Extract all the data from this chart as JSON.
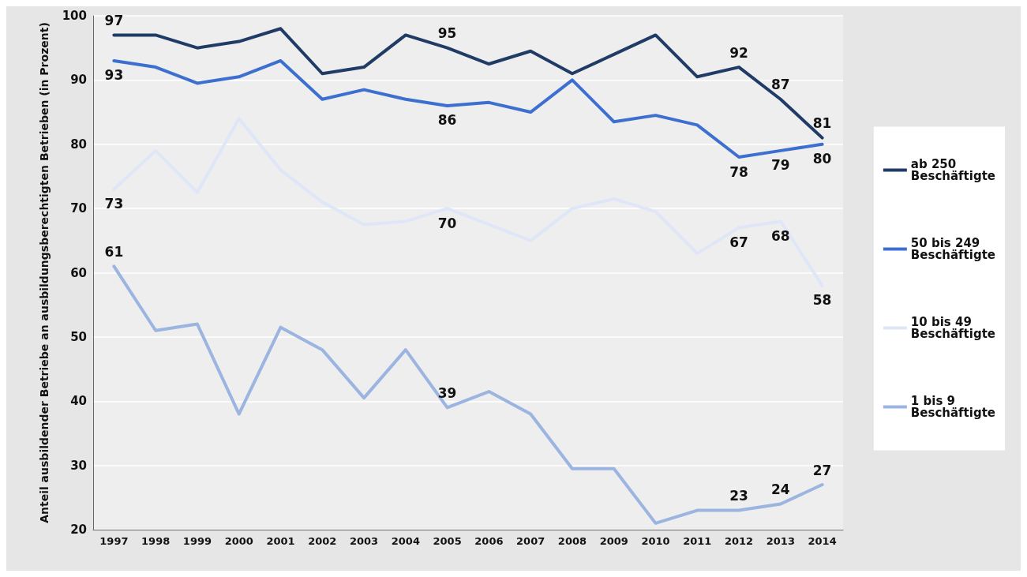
{
  "chart_data": {
    "type": "line",
    "ylabel": "Anteil ausbildender Betriebe an ausbildungsberechtigten Betrieben (in Prozent)",
    "categories": [
      "1997",
      "1998",
      "1999",
      "2000",
      "2001",
      "2002",
      "2003",
      "2004",
      "2005",
      "2006",
      "2007",
      "2008",
      "2009",
      "2010",
      "2011",
      "2012",
      "2013",
      "2014"
    ],
    "series": [
      {
        "name": "ab 250 Beschäftigte",
        "color": "#1f3b66",
        "values": [
          97,
          97,
          95,
          96,
          98,
          91,
          92,
          97,
          95,
          92.5,
          94.5,
          91,
          94,
          97,
          90.5,
          92,
          87,
          81
        ],
        "value_labels": [
          "97",
          null,
          null,
          null,
          null,
          null,
          null,
          null,
          "95",
          null,
          null,
          null,
          null,
          null,
          null,
          "92",
          "87",
          "81"
        ]
      },
      {
        "name": "50 bis 249 Beschäftigte",
        "color": "#3d6fd1",
        "values": [
          93,
          92,
          89.5,
          90.5,
          93,
          87,
          88.5,
          87,
          86,
          86.5,
          85,
          90,
          83.5,
          84.5,
          83,
          78,
          79,
          80
        ],
        "value_labels": [
          "93",
          null,
          null,
          null,
          null,
          null,
          null,
          null,
          "86",
          null,
          null,
          null,
          null,
          null,
          null,
          "78",
          "79",
          "80"
        ]
      },
      {
        "name": "10 bis 49 Beschäftigte",
        "color": "#dfe6f7",
        "values": [
          73,
          79,
          72.5,
          84,
          76,
          71,
          67.5,
          68,
          70,
          67.5,
          65,
          70,
          71.5,
          69.5,
          63,
          67,
          68,
          58
        ],
        "value_labels": [
          "73",
          null,
          null,
          null,
          null,
          null,
          null,
          null,
          "70",
          null,
          null,
          null,
          null,
          null,
          null,
          "67",
          "68",
          "58"
        ]
      },
      {
        "name": "1 bis 9 Beschäftigte",
        "color": "#9bb4e0",
        "values": [
          61,
          51,
          52,
          38,
          51.5,
          48,
          40.5,
          48,
          39,
          41.5,
          38,
          29.5,
          29.5,
          21,
          23,
          23,
          24,
          27
        ],
        "value_labels": [
          "61",
          null,
          null,
          null,
          null,
          null,
          null,
          null,
          "39",
          null,
          null,
          null,
          null,
          null,
          null,
          "23",
          "24",
          "27"
        ]
      }
    ],
    "ylim": [
      20,
      100
    ],
    "yticks": [
      20,
      30,
      40,
      50,
      60,
      70,
      80,
      90,
      100
    ],
    "grid": "y",
    "legend": "right",
    "marker": "none",
    "line_style": "solid"
  }
}
